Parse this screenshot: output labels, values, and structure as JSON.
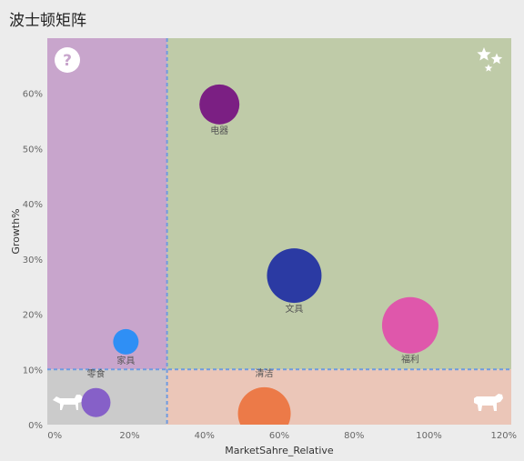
{
  "page": {
    "title": "波士顿矩阵"
  },
  "chart_data": {
    "type": "scatter",
    "title": "波士顿矩阵",
    "xlabel": "MarketSahre_Relative",
    "ylabel": "Growth%",
    "xlim": [
      -0.02,
      1.22
    ],
    "ylim": [
      0,
      0.7
    ],
    "x_ticks": [
      0,
      0.2,
      0.4,
      0.6,
      0.8,
      1.0,
      1.2
    ],
    "x_tick_labels": [
      "0%",
      "20%",
      "40%",
      "60%",
      "80%",
      "100%",
      "120%"
    ],
    "y_ticks": [
      0,
      0.1,
      0.2,
      0.3,
      0.4,
      0.5,
      0.6
    ],
    "y_tick_labels": [
      "0%",
      "10%",
      "20%",
      "30%",
      "40%",
      "50%",
      "60%"
    ],
    "thresholds": {
      "x": 0.3,
      "y": 0.1
    },
    "quadrant_colors": {
      "question": "#c8a5cc",
      "star": "#bfcba8",
      "dog": "#cbcbcb",
      "cow": "#ebc6b8"
    },
    "quadrant_icons": {
      "question": "question-mark-icon",
      "star": "stars-icon",
      "dog": "dog-icon",
      "cow": "cow-icon"
    },
    "points": [
      {
        "name": "电器",
        "x": 0.44,
        "y": 0.58,
        "size": 0.0,
        "color": "#7b1f83",
        "label_pos": "below"
      },
      {
        "name": "文具",
        "x": 0.64,
        "y": 0.27,
        "size": 0.0,
        "color": "#2b3aa3",
        "label_pos": "below"
      },
      {
        "name": "福利",
        "x": 0.95,
        "y": 0.18,
        "size": 0.0,
        "color": "#df57ab",
        "label_pos": "below"
      },
      {
        "name": "家具",
        "x": 0.19,
        "y": 0.15,
        "size": 0.0,
        "color": "#2f8ff5",
        "label_pos": "below"
      },
      {
        "name": "零食",
        "x": 0.11,
        "y": 0.04,
        "size": 0.0,
        "color": "#8660c8",
        "label_pos": "above"
      },
      {
        "name": "清洁",
        "x": 0.56,
        "y": 0.02,
        "size": 0.0,
        "color": "#ec7a48",
        "label_pos": "above"
      }
    ],
    "grid": false,
    "legend": "none"
  }
}
